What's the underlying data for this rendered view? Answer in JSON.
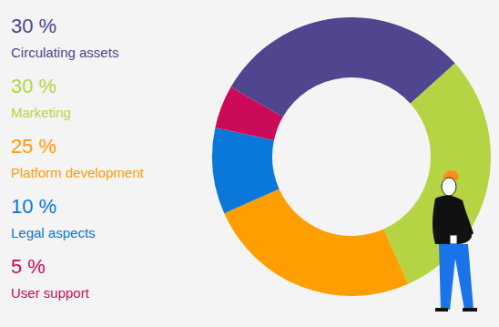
{
  "chart_data": {
    "type": "donut",
    "categories": [
      "Circulating assets",
      "Marketing",
      "Platform development",
      "Legal aspects",
      "User support"
    ],
    "values": [
      30,
      30,
      25,
      10,
      5
    ],
    "value_labels": [
      "30 %",
      "30 %",
      "25 %",
      "10 %",
      "5 %"
    ],
    "colors": [
      "#4f468f",
      "#b5d444",
      "#ff9e00",
      "#0a78d8",
      "#cc0a5a"
    ],
    "legend": "left"
  }
}
